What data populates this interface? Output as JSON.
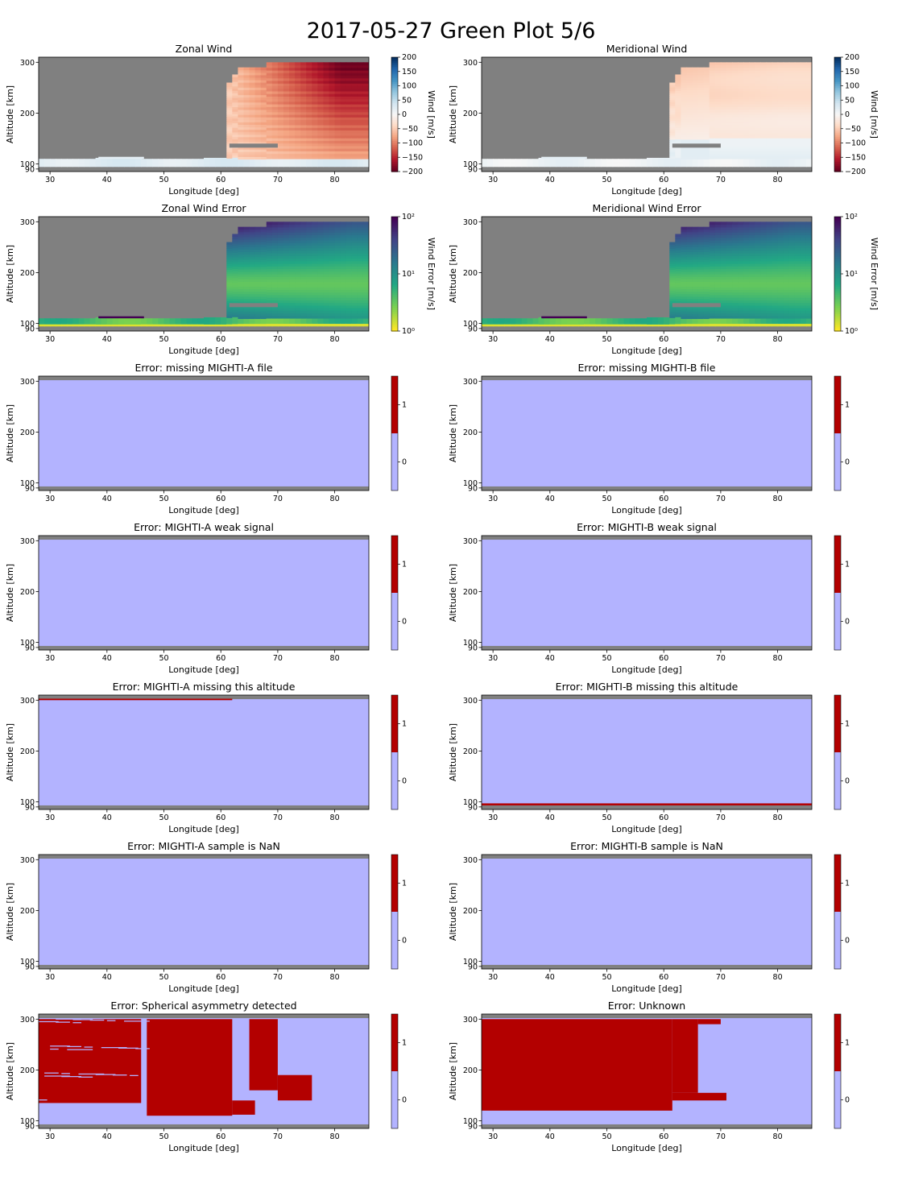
{
  "suptitle": "2017-05-27 Green Plot 5/6",
  "colors": {
    "nodata": "#808080",
    "flag_off": "#b3b3ff",
    "flag_on": "#b30000"
  },
  "chart_data": [
    {
      "type": "heatmap",
      "title": "Zonal Wind",
      "xlabel": "Longitude [deg]",
      "ylabel": "Altitude [km]",
      "xlim": [
        28,
        86
      ],
      "ylim": [
        85,
        310
      ],
      "xticks": [
        "30",
        "40",
        "50",
        "60",
        "70",
        "80"
      ],
      "yticks": [
        "90",
        "100",
        "200",
        "300"
      ],
      "colorbar": {
        "label": "Wind [m/s]",
        "scale": "diverging",
        "colormap": "RdBu",
        "range": [
          -200,
          200
        ],
        "ticks": [
          "200",
          "150",
          "100",
          "50",
          "0",
          "−50",
          "−100",
          "−150",
          "−200"
        ]
      },
      "description_values": {
        "high_altitude_east_of_62": -150,
        "low_altitude_band": 20
      }
    },
    {
      "type": "heatmap",
      "title": "Meridional Wind",
      "xlabel": "Longitude [deg]",
      "ylabel": "Altitude [km]",
      "xlim": [
        28,
        86
      ],
      "ylim": [
        85,
        310
      ],
      "xticks": [
        "30",
        "40",
        "50",
        "60",
        "70",
        "80"
      ],
      "yticks": [
        "90",
        "100",
        "200",
        "300"
      ],
      "colorbar": {
        "label": "Wind [m/s]",
        "scale": "diverging",
        "colormap": "RdBu",
        "range": [
          -200,
          200
        ],
        "ticks": [
          "200",
          "150",
          "100",
          "50",
          "0",
          "−50",
          "−100",
          "−150",
          "−200"
        ]
      },
      "description_values": {
        "high_altitude_east_of_62": -40,
        "low_altitude_band": 10
      }
    },
    {
      "type": "heatmap",
      "title": "Zonal Wind Error",
      "xlabel": "Longitude [deg]",
      "ylabel": "Altitude [km]",
      "xlim": [
        28,
        86
      ],
      "ylim": [
        85,
        310
      ],
      "xticks": [
        "30",
        "40",
        "50",
        "60",
        "70",
        "80"
      ],
      "yticks": [
        "90",
        "100",
        "200",
        "300"
      ],
      "colorbar": {
        "label": "Wind Error [m/s]",
        "scale": "log",
        "colormap": "viridis_r",
        "range": [
          1,
          100
        ],
        "ticks": [
          "10²",
          "10¹",
          "10⁰"
        ]
      }
    },
    {
      "type": "heatmap",
      "title": "Meridional Wind Error",
      "xlabel": "Longitude [deg]",
      "ylabel": "Altitude [km]",
      "xlim": [
        28,
        86
      ],
      "ylim": [
        85,
        310
      ],
      "xticks": [
        "30",
        "40",
        "50",
        "60",
        "70",
        "80"
      ],
      "yticks": [
        "90",
        "100",
        "200",
        "300"
      ],
      "colorbar": {
        "label": "Wind Error [m/s]",
        "scale": "log",
        "colormap": "viridis_r",
        "range": [
          1,
          100
        ],
        "ticks": [
          "10²",
          "10¹",
          "10⁰"
        ]
      }
    },
    {
      "type": "heatmap",
      "title": "Error: missing MIGHTI-A file",
      "xlabel": "Longitude [deg]",
      "ylabel": "Altitude [km]",
      "xlim": [
        28,
        86
      ],
      "ylim": [
        85,
        310
      ],
      "xticks": [
        "30",
        "40",
        "50",
        "60",
        "70",
        "80"
      ],
      "yticks": [
        "90",
        "100",
        "200",
        "300"
      ],
      "colorbar": {
        "scale": "binary",
        "ticks": [
          "1",
          "0"
        ]
      },
      "flag_value": 0
    },
    {
      "type": "heatmap",
      "title": "Error: missing MIGHTI-B file",
      "xlabel": "Longitude [deg]",
      "ylabel": "Altitude [km]",
      "xlim": [
        28,
        86
      ],
      "ylim": [
        85,
        310
      ],
      "xticks": [
        "30",
        "40",
        "50",
        "60",
        "70",
        "80"
      ],
      "yticks": [
        "90",
        "100",
        "200",
        "300"
      ],
      "colorbar": {
        "scale": "binary",
        "ticks": [
          "1",
          "0"
        ]
      },
      "flag_value": 0
    },
    {
      "type": "heatmap",
      "title": "Error: MIGHTI-A weak signal",
      "xlabel": "Longitude [deg]",
      "ylabel": "Altitude [km]",
      "xlim": [
        28,
        86
      ],
      "ylim": [
        85,
        310
      ],
      "xticks": [
        "30",
        "40",
        "50",
        "60",
        "70",
        "80"
      ],
      "yticks": [
        "90",
        "100",
        "200",
        "300"
      ],
      "colorbar": {
        "scale": "binary",
        "ticks": [
          "1",
          "0"
        ]
      },
      "flag_value": 0
    },
    {
      "type": "heatmap",
      "title": "Error: MIGHTI-B weak signal",
      "xlabel": "Longitude [deg]",
      "ylabel": "Altitude [km]",
      "xlim": [
        28,
        86
      ],
      "ylim": [
        85,
        310
      ],
      "xticks": [
        "30",
        "40",
        "50",
        "60",
        "70",
        "80"
      ],
      "yticks": [
        "90",
        "100",
        "200",
        "300"
      ],
      "colorbar": {
        "scale": "binary",
        "ticks": [
          "1",
          "0"
        ]
      },
      "flag_value": 0
    },
    {
      "type": "heatmap",
      "title": "Error: MIGHTI-A missing this altitude",
      "xlabel": "Longitude [deg]",
      "ylabel": "Altitude [km]",
      "xlim": [
        28,
        86
      ],
      "ylim": [
        85,
        310
      ],
      "xticks": [
        "30",
        "40",
        "50",
        "60",
        "70",
        "80"
      ],
      "yticks": [
        "90",
        "100",
        "200",
        "300"
      ],
      "colorbar": {
        "scale": "binary",
        "ticks": [
          "1",
          "0"
        ]
      },
      "flag_value": 0,
      "flagged_regions": [
        {
          "lon": [
            28,
            62
          ],
          "alt": [
            300,
            303
          ]
        }
      ]
    },
    {
      "type": "heatmap",
      "title": "Error: MIGHTI-B missing this altitude",
      "xlabel": "Longitude [deg]",
      "ylabel": "Altitude [km]",
      "xlim": [
        28,
        86
      ],
      "ylim": [
        85,
        310
      ],
      "xticks": [
        "30",
        "40",
        "50",
        "60",
        "70",
        "80"
      ],
      "yticks": [
        "90",
        "100",
        "200",
        "300"
      ],
      "colorbar": {
        "scale": "binary",
        "ticks": [
          "1",
          "0"
        ]
      },
      "flag_value": 0,
      "flagged_regions": [
        {
          "lon": [
            28,
            86
          ],
          "alt": [
            93,
            97
          ]
        }
      ]
    },
    {
      "type": "heatmap",
      "title": "Error: MIGHTI-A sample is NaN",
      "xlabel": "Longitude [deg]",
      "ylabel": "Altitude [km]",
      "xlim": [
        28,
        86
      ],
      "ylim": [
        85,
        310
      ],
      "xticks": [
        "30",
        "40",
        "50",
        "60",
        "70",
        "80"
      ],
      "yticks": [
        "90",
        "100",
        "200",
        "300"
      ],
      "colorbar": {
        "scale": "binary",
        "ticks": [
          "1",
          "0"
        ]
      },
      "flag_value": 0
    },
    {
      "type": "heatmap",
      "title": "Error: MIGHTI-B sample is NaN",
      "xlabel": "Longitude [deg]",
      "ylabel": "Altitude [km]",
      "xlim": [
        28,
        86
      ],
      "ylim": [
        85,
        310
      ],
      "xticks": [
        "30",
        "40",
        "50",
        "60",
        "70",
        "80"
      ],
      "yticks": [
        "90",
        "100",
        "200",
        "300"
      ],
      "colorbar": {
        "scale": "binary",
        "ticks": [
          "1",
          "0"
        ]
      },
      "flag_value": 0
    },
    {
      "type": "heatmap",
      "title": "Error: Spherical asymmetry detected",
      "xlabel": "Longitude [deg]",
      "ylabel": "Altitude [km]",
      "xlim": [
        28,
        86
      ],
      "ylim": [
        85,
        310
      ],
      "xticks": [
        "30",
        "40",
        "50",
        "60",
        "70",
        "80"
      ],
      "yticks": [
        "90",
        "100",
        "200",
        "300"
      ],
      "colorbar": {
        "scale": "binary",
        "ticks": [
          "1",
          "0"
        ]
      },
      "flag_value": 0,
      "flagged_regions": [
        {
          "lon": [
            28,
            46
          ],
          "alt": [
            135,
            300
          ]
        },
        {
          "lon": [
            47,
            62
          ],
          "alt": [
            110,
            300
          ]
        },
        {
          "lon": [
            62,
            66
          ],
          "alt": [
            112,
            140
          ]
        },
        {
          "lon": [
            65,
            70
          ],
          "alt": [
            160,
            300
          ]
        },
        {
          "lon": [
            70,
            76
          ],
          "alt": [
            140,
            190
          ]
        }
      ]
    },
    {
      "type": "heatmap",
      "title": "Error: Unknown",
      "xlabel": "Longitude [deg]",
      "ylabel": "Altitude [km]",
      "xlim": [
        28,
        86
      ],
      "ylim": [
        85,
        310
      ],
      "xticks": [
        "30",
        "40",
        "50",
        "60",
        "70",
        "80"
      ],
      "yticks": [
        "90",
        "100",
        "200",
        "300"
      ],
      "colorbar": {
        "scale": "binary",
        "ticks": [
          "1",
          "0"
        ]
      },
      "flag_value": 0,
      "flagged_regions": [
        {
          "lon": [
            28,
            61.5
          ],
          "alt": [
            120,
            300
          ]
        },
        {
          "lon": [
            61.5,
            71
          ],
          "alt": [
            140,
            155
          ]
        },
        {
          "lon": [
            61.5,
            66
          ],
          "alt": [
            155,
            300
          ]
        },
        {
          "lon": [
            66,
            70
          ],
          "alt": [
            290,
            300
          ]
        }
      ]
    }
  ]
}
